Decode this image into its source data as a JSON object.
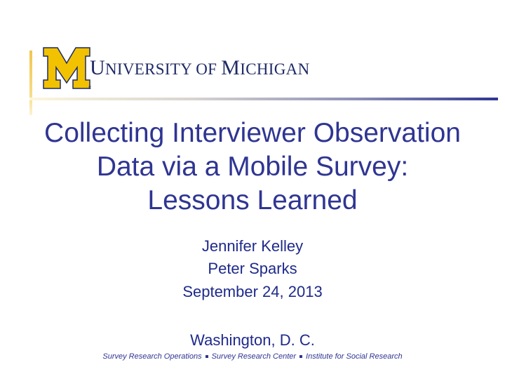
{
  "logo": {
    "mark_letter": "M",
    "wordmark_parts": [
      "U",
      "NIVERSITY OF ",
      "M",
      "ICHIGAN"
    ],
    "maize_color": "#f2c200",
    "blue_color": "#1f2a66"
  },
  "title_lines": [
    "Collecting Interviewer Observation",
    "Data via a Mobile Survey:",
    "Lessons Learned"
  ],
  "authors": [
    "Jennifer Kelley",
    "Peter Sparks"
  ],
  "date": "September 24, 2013",
  "location": "Washington, D. C.",
  "footer": {
    "items": [
      "Survey Research Operations",
      "Survey Research Center",
      "Institute for Social Research"
    ]
  },
  "colors": {
    "title": "#2f3592",
    "accent_gold": "#f2c64d"
  }
}
